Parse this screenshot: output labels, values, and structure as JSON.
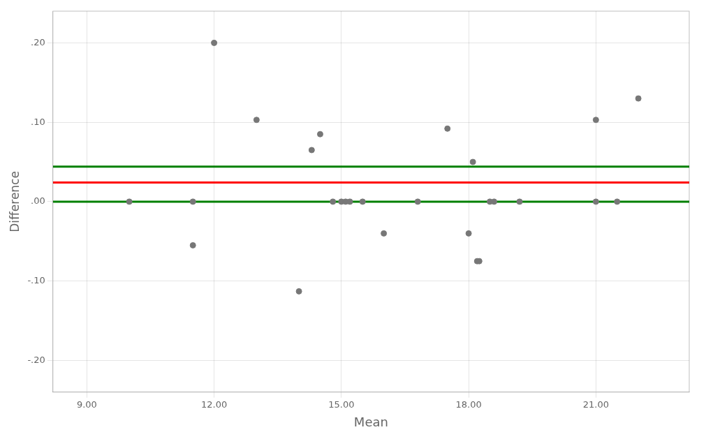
{
  "chart_data": {
    "type": "scatter",
    "x_label": "Mean",
    "y_label": "Difference",
    "series": [
      {
        "type": "scatter",
        "color": "#777777",
        "x": [
          10.0,
          11.5,
          11.5,
          12.0,
          13.0,
          14.0,
          14.3,
          14.5,
          14.8,
          15.0,
          15.1,
          15.2,
          15.5,
          16.0,
          16.8,
          17.5,
          18.0,
          18.1,
          18.2,
          18.25,
          18.5,
          18.6,
          19.2,
          21.0,
          21.0,
          21.5,
          22.0
        ],
        "values": [
          0.0,
          0.0,
          -0.055,
          0.2,
          0.103,
          -0.113,
          0.065,
          0.085,
          0.0,
          0.0,
          0.0,
          0.0,
          0.0,
          -0.04,
          0.0,
          0.092,
          -0.04,
          0.05,
          -0.075,
          -0.075,
          0.0,
          0.0,
          0.0,
          0.0,
          0.103,
          0.0,
          0.13
        ]
      },
      {
        "type": "hline",
        "color": "#ff0000",
        "values": [
          0.024
        ]
      },
      {
        "type": "hline",
        "color": "#008000",
        "values": [
          0.044
        ]
      },
      {
        "type": "hline",
        "color": "#008000",
        "values": [
          0.0
        ]
      }
    ],
    "xlim": [
      8.2,
      23.2
    ],
    "ylim": [
      -0.24,
      0.24
    ],
    "xticks": [
      {
        "value": 9.0,
        "label": "9.00"
      },
      {
        "value": 12.0,
        "label": "12.00"
      },
      {
        "value": 15.0,
        "label": "15.00"
      },
      {
        "value": 18.0,
        "label": "18.00"
      },
      {
        "value": 21.0,
        "label": "21.00"
      }
    ],
    "yticks": [
      {
        "value": -0.2,
        "label": "-.20"
      },
      {
        "value": -0.1,
        "label": "-.10"
      },
      {
        "value": 0.0,
        "label": ".00"
      },
      {
        "value": 0.1,
        "label": ".10"
      },
      {
        "value": 0.2,
        "label": ".20"
      }
    ],
    "grid": true
  }
}
